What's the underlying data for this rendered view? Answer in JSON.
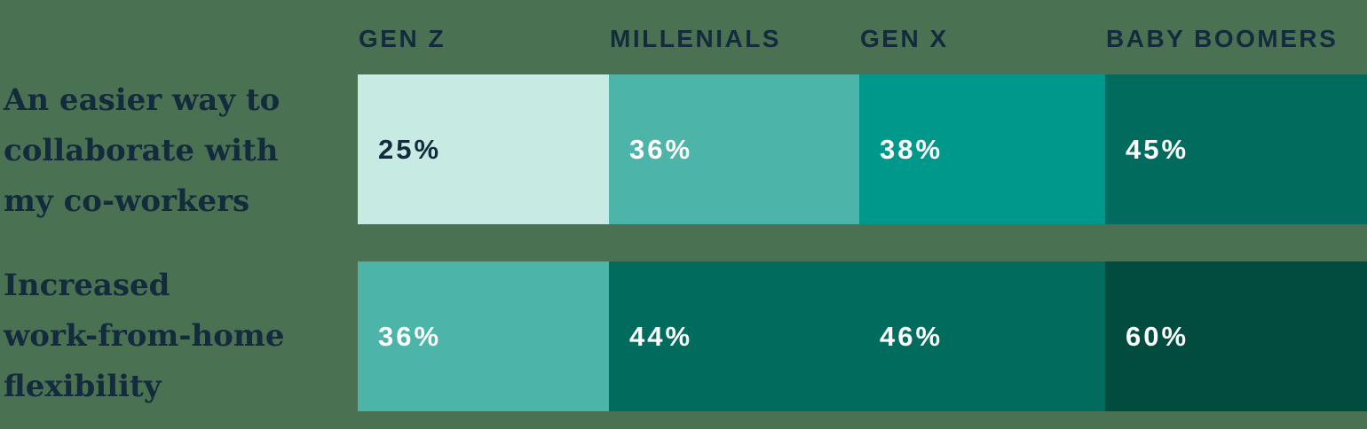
{
  "colors": {
    "background": "#4A7152",
    "dark_text": "#132B3C",
    "white_text": "#FFFFFF",
    "scale_lightest": "#C7EBE3",
    "scale_light": "#4DB4AA",
    "scale_mid": "#00988A",
    "scale_dark": "#016C5E",
    "scale_darkest": "#014B3F"
  },
  "columns": [
    "GEN Z",
    "MILLENIALS",
    "GEN X",
    "BABY BOOMERS"
  ],
  "rows": [
    {
      "label": "An easier way to collaborate with my co-workers",
      "label_lines": [
        "An easier way to",
        "collaborate with",
        "my co-workers"
      ],
      "cells": [
        {
          "label": "25%",
          "value": 25,
          "bg": "#C7EBE3",
          "fg": "#132B3C"
        },
        {
          "label": "36%",
          "value": 36,
          "bg": "#4DB4AA",
          "fg": "#FFFFFF"
        },
        {
          "label": "38%",
          "value": 38,
          "bg": "#00988A",
          "fg": "#FFFFFF"
        },
        {
          "label": "45%",
          "value": 45,
          "bg": "#016C5E",
          "fg": "#FFFFFF"
        }
      ]
    },
    {
      "label": "Increased work-from-home flexibility",
      "label_lines": [
        "Increased",
        "work-from-home",
        "flexibility"
      ],
      "cells": [
        {
          "label": "36%",
          "value": 36,
          "bg": "#4DB4AA",
          "fg": "#FFFFFF"
        },
        {
          "label": "44%",
          "value": 44,
          "bg": "#016C5E",
          "fg": "#FFFFFF"
        },
        {
          "label": "46%",
          "value": 46,
          "bg": "#016C5E",
          "fg": "#FFFFFF"
        },
        {
          "label": "60%",
          "value": 60,
          "bg": "#014B3F",
          "fg": "#FFFFFF"
        }
      ]
    }
  ],
  "chart_data": {
    "type": "heatmap",
    "title": "",
    "columns": [
      "GEN Z",
      "MILLENIALS",
      "GEN X",
      "BABY BOOMERS"
    ],
    "categories": [
      "An easier way to collaborate with my co-workers",
      "Increased work-from-home flexibility"
    ],
    "series": [
      {
        "name": "GEN Z",
        "values": [
          25,
          36
        ]
      },
      {
        "name": "MILLENIALS",
        "values": [
          36,
          44
        ]
      },
      {
        "name": "GEN X",
        "values": [
          38,
          46
        ]
      },
      {
        "name": "BABY BOOMERS",
        "values": [
          45,
          60
        ]
      }
    ],
    "unit": "%",
    "value_range": [
      25,
      60
    ],
    "legend_position": "none",
    "grid": false,
    "color_scale": [
      "#C7EBE3",
      "#4DB4AA",
      "#00988A",
      "#016C5E",
      "#014B3F"
    ],
    "color_scale_note": "darker cell = higher percentage"
  }
}
